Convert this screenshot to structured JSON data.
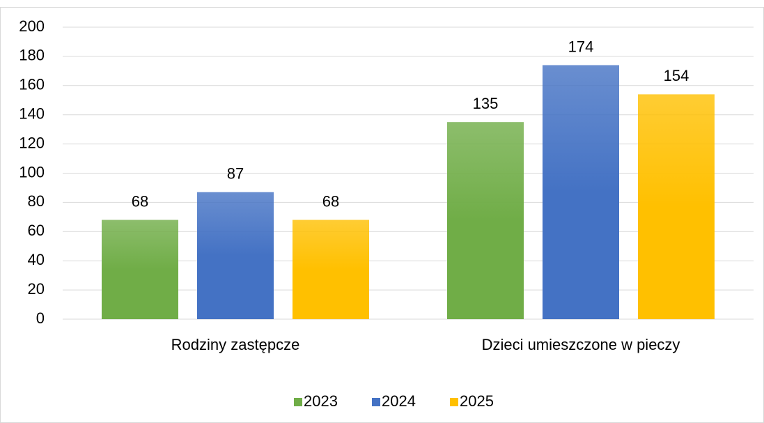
{
  "chart_data": {
    "type": "bar",
    "categories": [
      "Rodziny zastępcze",
      "Dzieci umieszczone w pieczy"
    ],
    "series": [
      {
        "name": "2023",
        "color": "#70ad47",
        "values": [
          68,
          135
        ]
      },
      {
        "name": "2024",
        "color": "#4472c4",
        "values": [
          87,
          174
        ]
      },
      {
        "name": "2025",
        "color": "#ffc000",
        "values": [
          68,
          154
        ]
      }
    ],
    "ylim": [
      0,
      200
    ],
    "yticks": [
      0,
      20,
      40,
      60,
      80,
      100,
      120,
      140,
      160,
      180,
      200
    ],
    "grid": true,
    "legend": "bottom",
    "data_labels": true
  }
}
